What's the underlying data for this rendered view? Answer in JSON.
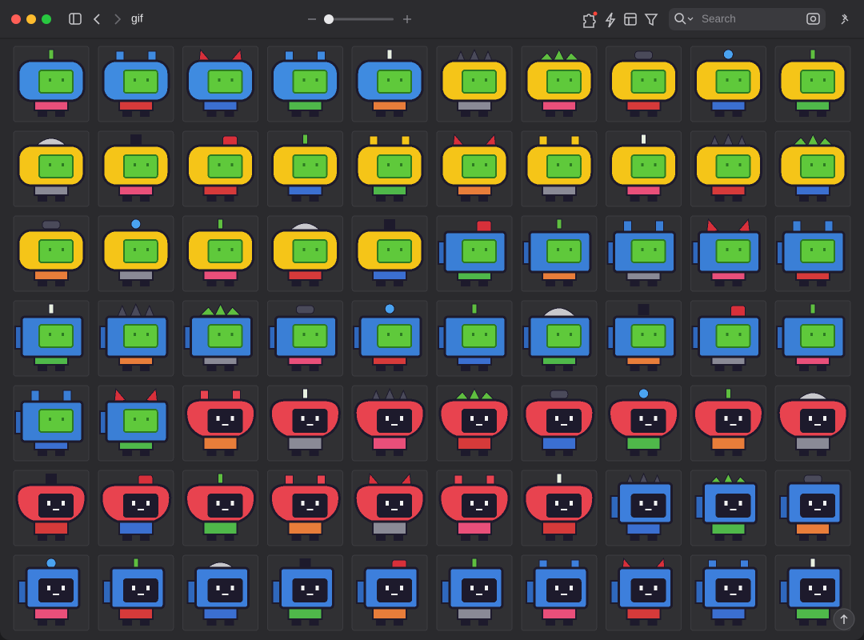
{
  "toolbar": {
    "title": "gif",
    "search_placeholder": "Search"
  }
}
